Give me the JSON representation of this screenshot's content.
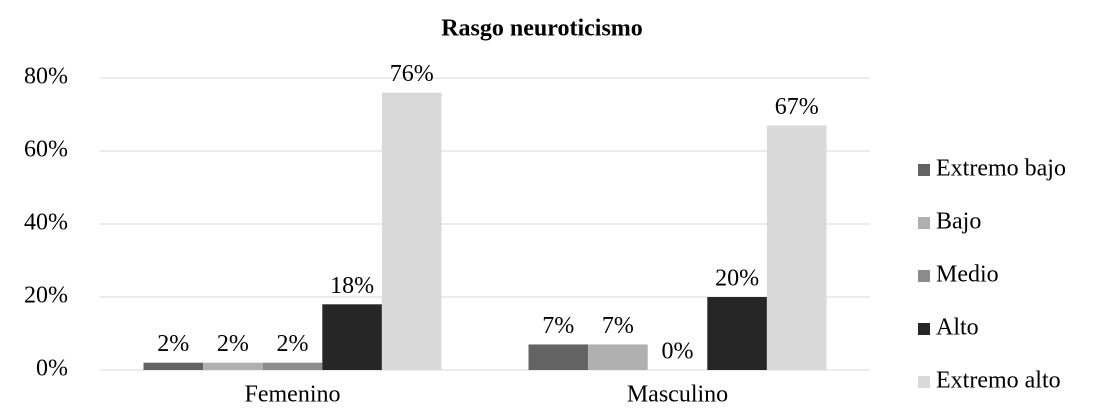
{
  "chart_data": {
    "type": "bar",
    "title": "Rasgo neuroticismo",
    "categories": [
      "Femenino",
      "Masculino"
    ],
    "series": [
      {
        "name": "Extremo bajo",
        "color": "#636363",
        "values": [
          2,
          7
        ],
        "value_labels": [
          "2%",
          "7%"
        ]
      },
      {
        "name": "Bajo",
        "color": "#b0b0b0",
        "values": [
          2,
          7
        ],
        "value_labels": [
          "2%",
          "7%"
        ]
      },
      {
        "name": "Medio",
        "color": "#8c8c8c",
        "values": [
          2,
          0
        ],
        "value_labels": [
          "2%",
          "0%"
        ]
      },
      {
        "name": "Alto",
        "color": "#262626",
        "values": [
          18,
          20
        ],
        "value_labels": [
          "18%",
          "20%"
        ]
      },
      {
        "name": "Extremo alto",
        "color": "#d9d9d9",
        "values": [
          76,
          67
        ],
        "value_labels": [
          "76%",
          "67%"
        ]
      }
    ],
    "ylim": [
      0,
      80
    ],
    "yticks": [
      {
        "value": 0,
        "label": "0%"
      },
      {
        "value": 20,
        "label": "20%"
      },
      {
        "value": 40,
        "label": "40%"
      },
      {
        "value": 60,
        "label": "60%"
      },
      {
        "value": 80,
        "label": "80%"
      }
    ],
    "grid": true,
    "legend": "right"
  }
}
